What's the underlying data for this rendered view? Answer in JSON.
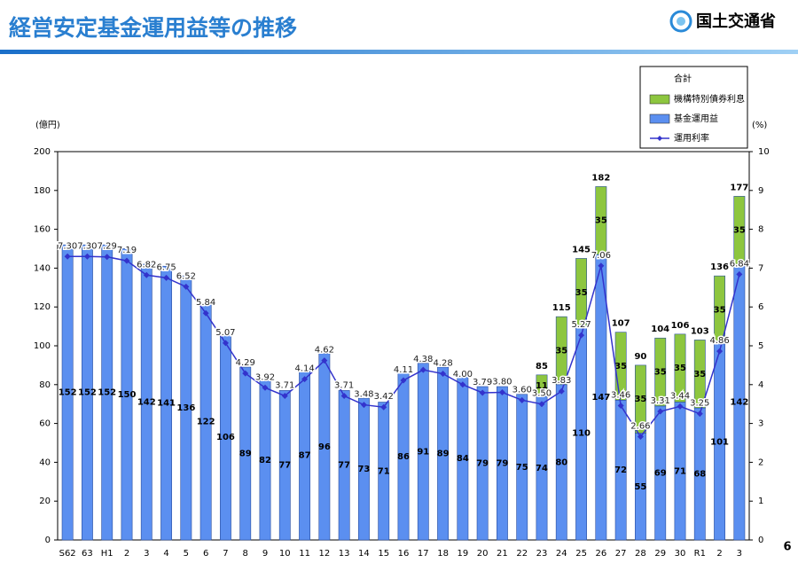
{
  "header": {
    "title": "経営安定基金運用益等の推移",
    "org": "国土交通省"
  },
  "page_number": "6",
  "chart_data": {
    "type": "bar",
    "y_label": "(億円)",
    "y2_label": "(%)",
    "categories": [
      "S62",
      "63",
      "H1",
      "2",
      "3",
      "4",
      "5",
      "6",
      "7",
      "8",
      "9",
      "10",
      "11",
      "12",
      "13",
      "14",
      "15",
      "16",
      "17",
      "18",
      "19",
      "20",
      "21",
      "22",
      "23",
      "24",
      "25",
      "26",
      "27",
      "28",
      "29",
      "30",
      "R1",
      "2",
      "3"
    ],
    "series": [
      {
        "name": "機構特別債券利息",
        "color": "#8dc63f",
        "type": "bar",
        "values": [
          null,
          null,
          null,
          null,
          null,
          null,
          null,
          null,
          null,
          null,
          null,
          null,
          null,
          null,
          null,
          null,
          null,
          null,
          null,
          null,
          null,
          null,
          null,
          null,
          11,
          35,
          35,
          35,
          35,
          35,
          35,
          35,
          35,
          35,
          35
        ]
      },
      {
        "name": "基金運用益",
        "color": "#5b8ff0",
        "type": "bar",
        "values": [
          152,
          152,
          152,
          150,
          142,
          141,
          136,
          122,
          106,
          89,
          82,
          77,
          87,
          96,
          77,
          73,
          71,
          86,
          91,
          89,
          84,
          79,
          79,
          75,
          74,
          80,
          110,
          147,
          72,
          55,
          69,
          71,
          68,
          101,
          142
        ]
      },
      {
        "name": "運用利率",
        "color": "#3333cc",
        "type": "line",
        "axis": "y2",
        "values": [
          7.3,
          7.3,
          7.29,
          7.19,
          6.82,
          6.75,
          6.52,
          5.84,
          5.07,
          4.29,
          3.92,
          3.71,
          4.14,
          4.62,
          3.71,
          3.48,
          3.42,
          4.11,
          4.38,
          4.28,
          4.0,
          3.79,
          3.8,
          3.6,
          3.5,
          3.83,
          5.27,
          7.06,
          3.46,
          2.66,
          3.31,
          3.44,
          3.25,
          4.86,
          6.84
        ],
        "value_labels": [
          "7.30",
          "7.30",
          "7.29",
          "7.19",
          "6.82",
          "6.75",
          "6.52",
          "5.84",
          "5.07",
          "4.29",
          "3.92",
          "3.71",
          "4.14",
          "4.62",
          "3.71",
          "3.48",
          "3.42",
          "4.11",
          "4.38",
          "4.28",
          "4.00",
          "3.79",
          "3.80",
          "3.60",
          "3.50",
          "3.83",
          "5.27",
          "7.06",
          "3.46",
          "2.66",
          "3.31",
          "3.44",
          "3.25",
          "4.86",
          "6.84"
        ]
      }
    ],
    "total_name": "合計",
    "totals": [
      null,
      null,
      null,
      null,
      null,
      null,
      null,
      null,
      null,
      null,
      null,
      null,
      null,
      null,
      null,
      null,
      null,
      null,
      null,
      null,
      null,
      null,
      null,
      null,
      85,
      115,
      145,
      182,
      107,
      90,
      104,
      106,
      103,
      136,
      177
    ],
    "ylim": [
      0,
      200
    ],
    "yticks": [
      0,
      20,
      40,
      60,
      80,
      100,
      120,
      140,
      160,
      180,
      200
    ],
    "y2lim": [
      0,
      10
    ],
    "y2ticks": [
      0,
      1,
      2,
      3,
      4,
      5,
      6,
      7,
      8,
      9,
      10
    ]
  }
}
